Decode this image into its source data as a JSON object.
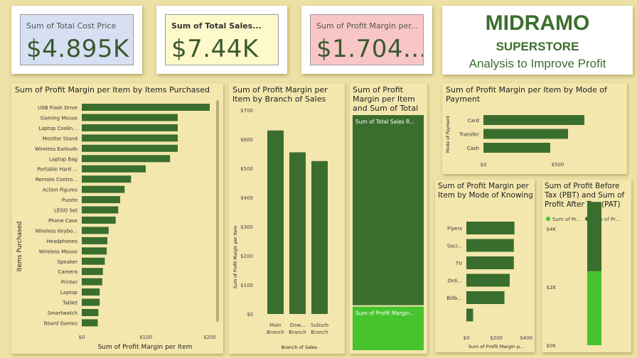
{
  "kpis": [
    {
      "label": "Sum of Total Cost Price",
      "value": "$4.895K",
      "bg": "#d6e0f2"
    },
    {
      "label": "Sum of Total Sales...",
      "value": "$7.44K",
      "bg": "#fdf9cb"
    },
    {
      "label": "Sum of Profit Margin per...",
      "value": "$1.704...",
      "bg": "#f8c6c6"
    }
  ],
  "brand": {
    "line1": "MIDRAMO",
    "line2": "SUPERSTORE",
    "line3": "Analysis to Improve Profit"
  },
  "colors": {
    "dark_green": "#3a6e2e",
    "light_green": "#46c32d",
    "background": "#ede1a6",
    "panel": "#f3e7ad"
  },
  "chart_data": [
    {
      "type": "bar",
      "orientation": "horizontal",
      "title": "Sum of Profit Margin per Item by Items Purchased",
      "xlabel": "Sum of Profit Margin per Item",
      "ylabel": "Items Purchased",
      "xlim": [
        0,
        200
      ],
      "xticks": [
        "$0",
        "$100",
        "$200"
      ],
      "categories": [
        "USB Flash Drive",
        "Gaming Mouse",
        "Laptop Coolin...",
        "Monitor Stand",
        "Wireless Earbuds",
        "Laptop Bag",
        "Portable Hard ...",
        "Remote Contro...",
        "Action Figures",
        "Puzzle",
        "LEGO Set",
        "Phone Case",
        "Wireless Keybo...",
        "Headphones",
        "Wireless Mouse",
        "Speaker",
        "Camera",
        "Printer",
        "Laptop",
        "Tablet",
        "Smartwatch",
        "Board Games"
      ],
      "values": [
        200,
        150,
        150,
        150,
        150,
        138,
        100,
        77,
        67,
        60,
        57,
        53,
        42,
        40,
        39,
        36,
        33,
        32,
        28,
        28,
        26,
        25
      ]
    },
    {
      "type": "bar",
      "title": "Sum of Profit Margin per Item by Branch of Sales",
      "xlabel": "Branch of Sales",
      "ylabel": "Sum of Profit Margin per Item",
      "ylim": [
        0,
        700
      ],
      "yticks": [
        "$0",
        "$100",
        "$200",
        "$300",
        "$400",
        "$500",
        "$600",
        "$700"
      ],
      "categories": [
        [
          "Main",
          "Branch"
        ],
        [
          "Dow...",
          "Branch"
        ],
        [
          "Suburb",
          "Branch"
        ]
      ],
      "values": [
        630,
        555,
        525
      ]
    },
    {
      "type": "bar",
      "stacked": true,
      "title": "Sum of Profit Margin per Item and Sum of Total ...",
      "series": [
        {
          "name": "Sum of Total Sales R...",
          "value": 7440,
          "color": "#3a6e2e"
        },
        {
          "name": "Sum of Profit Margin...",
          "value": 1704,
          "color": "#46c32d"
        }
      ]
    },
    {
      "type": "bar",
      "orientation": "horizontal",
      "title": "Sum of Profit Margin per Item by Mode of Payment",
      "ylabel": "Mode of Payment",
      "xlim": [
        0,
        800
      ],
      "xticks": [
        "$0",
        "$500"
      ],
      "categories": [
        "Card",
        "Transfer",
        "Cash"
      ],
      "values": [
        680,
        570,
        450
      ]
    },
    {
      "type": "bar",
      "orientation": "horizontal",
      "title": "Sum of Profit Margin per Item by Mode of Knowing",
      "xlabel": "Sum of Profit Margin p...",
      "xlim": [
        0,
        400
      ],
      "xticks": [
        "$0",
        "$200",
        "$400"
      ],
      "categories": [
        "Flyers",
        "Soci...",
        "TV",
        "Onli...",
        "Billb...",
        ""
      ],
      "values": [
        322,
        318,
        318,
        290,
        255,
        45
      ]
    },
    {
      "type": "bar",
      "stacked": true,
      "title": "Sum of Profit Before Tax (PBT) and Sum of Profit After Tax (PAT)",
      "legend": [
        "Sum of Pr...",
        "Sum of Pr..."
      ],
      "ylim": [
        0,
        5000
      ],
      "yticks": [
        "$0K",
        "$2K",
        "$4K"
      ],
      "series": [
        {
          "name": "Sum of Pr...",
          "value": 2540,
          "color": "#46c32d"
        },
        {
          "name": "Sum of Pr...",
          "value": 2380,
          "color": "#3a6e2e"
        }
      ]
    }
  ]
}
